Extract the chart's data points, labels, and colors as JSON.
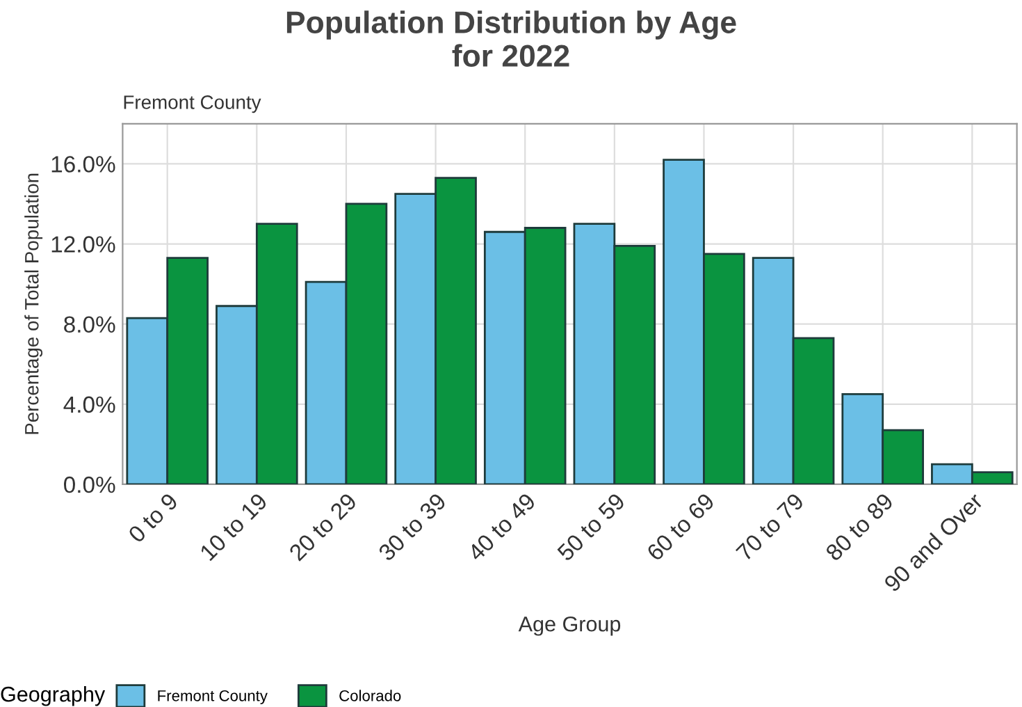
{
  "chart_data": {
    "type": "bar",
    "title": "Population Distribution by Age\nfor 2022",
    "subtitle": "Fremont County",
    "xlabel": "Age Group",
    "ylabel": "Percentage of Total Population",
    "legend_title": "Geography",
    "categories": [
      "0 to 9",
      "10 to 19",
      "20 to 29",
      "30 to 39",
      "40 to 49",
      "50 to 59",
      "60 to 69",
      "70 to 79",
      "80 to 89",
      "90 and Over"
    ],
    "series": [
      {
        "name": "Fremont County",
        "color": "#6bbfe6",
        "values": [
          8.3,
          8.9,
          10.1,
          14.5,
          12.6,
          13.0,
          16.2,
          11.3,
          4.5,
          1.0
        ]
      },
      {
        "name": "Colorado",
        "color": "#0a9440",
        "values": [
          11.3,
          13.0,
          14.0,
          15.3,
          12.8,
          11.9,
          11.5,
          7.3,
          2.7,
          0.6
        ]
      }
    ],
    "ylim": [
      0,
      18
    ],
    "yticks": [
      {
        "value": 0,
        "label": "0.0%"
      },
      {
        "value": 4,
        "label": "4.0%"
      },
      {
        "value": 8,
        "label": "8.0%"
      },
      {
        "value": 12,
        "label": "12.0%"
      },
      {
        "value": 16,
        "label": "16.0%"
      }
    ],
    "grid": true,
    "legend": "bottom"
  }
}
